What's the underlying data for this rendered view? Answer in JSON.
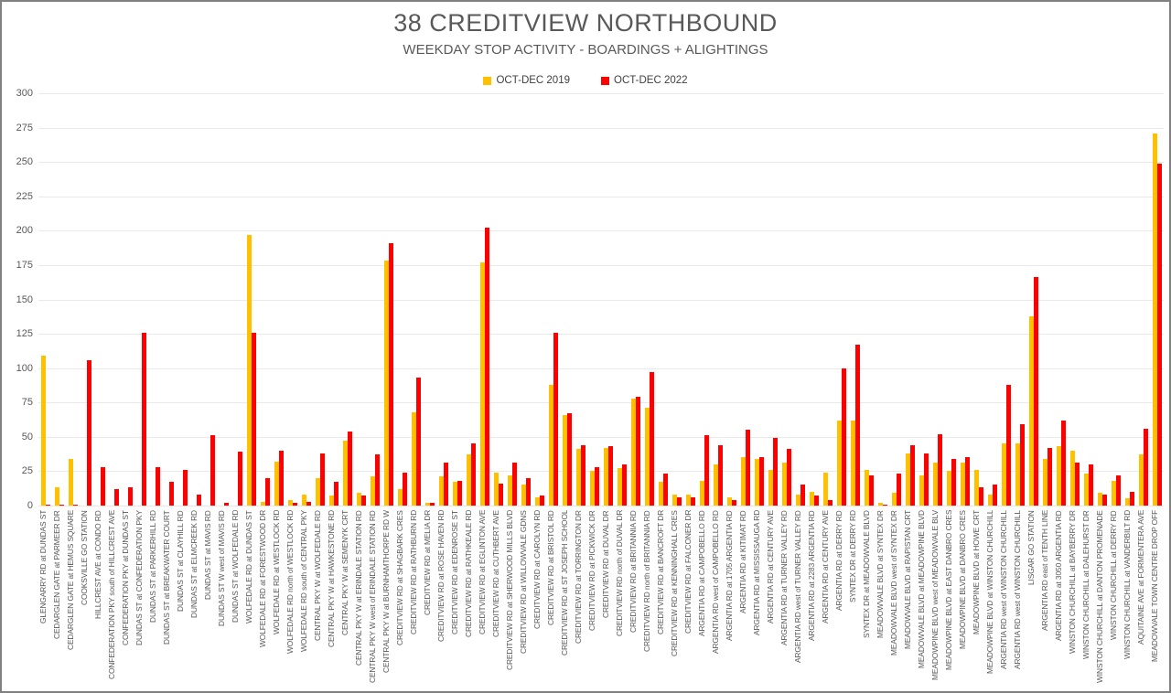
{
  "header": {
    "title": "38 CREDITVIEW NORTHBOUND",
    "subtitle": "WEEKDAY STOP ACTIVITY - BOARDINGS + ALIGHTINGS"
  },
  "legend": [
    {
      "label": "OCT-DEC 2019",
      "color": "#FFC000"
    },
    {
      "label": "OCT-DEC 2022",
      "color": "#FF0000"
    }
  ],
  "chart_data": {
    "type": "bar",
    "title": "38 CREDITVIEW NORTHBOUND",
    "subtitle": "WEEKDAY STOP ACTIVITY - BOARDINGS + ALIGHTINGS",
    "ylim": [
      0,
      300
    ],
    "ytick_step": 25,
    "grid": true,
    "legend_position": "top",
    "categories": [
      "GLENGARRY RD at DUNDAS ST",
      "CEDARGLEN GATE at PARMEER DR",
      "CEDARGLEN GATE at HEMUS SQUARE",
      "COOKSVILLE GO STATION",
      "HILLCREST AVE at CONDO RD",
      "CONFEDERATION PKY south of HILLCREST AVE",
      "CONFEDERATION PKY at DUNDAS ST",
      "DUNDAS ST at CONFEDERATION PKY",
      "DUNDAS ST at PARKERHILL RD",
      "DUNDAS ST at BREAKWATER COURT",
      "DUNDAS ST at CLAYHILL RD",
      "DUNDAS ST at ELMCREEK RD",
      "DUNDAS ST at MAVIS RD",
      "DUNDAS ST W west of MAVIS RD",
      "DUNDAS ST at WOLFEDALE RD",
      "WOLFEDALE RD at DUNDAS ST",
      "WOLFEDALE RD at FORESTWOOD DR",
      "WOLFEDALE RD at WESTLOCK RD",
      "WOLFEDALE RD north of WESTLOCK RD",
      "WOLFEDALE RD south of CENTRAL PKY",
      "CENTRAL PKY W at WOLFEDALE RD",
      "CENTRAL PKY W at HAWKESTONE RD",
      "CENTRAL PKY W at SEMENYK CRT",
      "CENTRAL PKY W at ERINDALE STATION RD",
      "CENTRAL PKY W west of ERINDALE STATION RD",
      "CENTRAL PKY W at BURNHAMTHORPE RD W",
      "CREDITVIEW RD at SHAGBARK CRES",
      "CREDITVIEW RD at RATHBURN RD",
      "CREDITVIEW RD at MELIA DR",
      "CREDITVIEW RD at ROSE HAVEN RD",
      "CREDITVIEW RD at EDENROSE ST",
      "CREDITVIEW RD at RATHKEALE RD",
      "CREDITVIEW RD at EGLINTON AVE",
      "CREDITVIEW RD at CUTHBERT AVE",
      "CREDITVIEW RD at SHERWOOD MILLS BLVD",
      "CREDITVIEW RD at WILLOWVALE GDNS",
      "CREDITVIEW RD at CAROLYN RD",
      "CREDITVIEW RD at BRISTOL RD",
      "CREDITVIEW RD at ST JOSEPH SCHOOL",
      "CREDITVIEW RD at TORRINGTON DR",
      "CREDITVIEW RD at PICKWICK DR",
      "CREDITVIEW RD at DUVAL DR",
      "CREDITVIEW RD north  of DUVAL DR",
      "CREDITVIEW RD at BRITANNIA RD",
      "CREDITVIEW RD north of BRITANNIA RD",
      "CREDITVIEW RD at BANCROFT DR",
      "CREDITVIEW RD at KENNINGHALL CRES",
      "CREDITVIEW RD at FALCONER DR",
      "ARGENTIA RD at CAMPOBELLO RD",
      "ARGENTIA RD west of CAMPOBELLO RD",
      "ARGENTIA RD at 1705 ARGENTIA RD",
      "ARGENTIA RD at KITIMAT RD",
      "ARGENTIA RD at MISSISSAUGA RD",
      "ARGENTIA RD at CENTURY AVE",
      "ARGENTIA RD at TURNER VALLEY RD",
      "ARGENTIA RD west of TURNER VALLEY RD",
      "ARGENTIA RD at 2283 ARGENTIA RD",
      "ARGENTIA RD at CENTURY AVE",
      "ARGENTIA RD at DERRY RD",
      "SYNTEX DR at DERRY RD",
      "SYNTEX DR at MEADOWVALE BLVD",
      "MEADOWVALE BLVD at SYNTEX DR",
      "MEADOWVALE BLVD west of SYNTEX DR",
      "MEADOWVALE BLVD at RAPISTAN CRT",
      "MEADOWVALE BLVD at MEADOWPINE BLVD",
      "MEADOWPINE BLVD west of MEADOWVALE BLV",
      "MEADOWPINE BLVD at EAST DANBRO CRES",
      "MEADOWPINE BLVD at DANBRO CRES",
      "MEADOWPINE BLVD at HOWE CRT",
      "MEADOWPINE BLVD at WINSTON CHURCHILL",
      "ARGENTIA RD west of WINSTON CHURCHILL",
      "ARGENTIA RD west of WINSTON CHURCHILL",
      "LISGAR GO STATION",
      "ARGENTIA RD east of TENTH LINE",
      "ARGENTIA RD at 3050 ARGENTIA RD",
      "WINSTON CHURCHILL at BAYBERRY DR",
      "WINSTON CHURCHILL at DALEHURST DR",
      "WINSTON CHURCHILL at DANTON PROMENADE",
      "WINSTON CHURCHILL at DERRY RD",
      "WINSTON CHURCHILL at VANDERBILT RD",
      "AQUITAINE AVE at FORMENTERA AVE",
      "MEADOWVALE TOWN CENTRE DROP OFF"
    ],
    "series": [
      {
        "name": "OCT-DEC 2019",
        "color": "#FFC000",
        "values": [
          109,
          13,
          34,
          0,
          0,
          0,
          0,
          0,
          0,
          0,
          0,
          0,
          0,
          0,
          0,
          197,
          3,
          32,
          4,
          8,
          20,
          7,
          47,
          9,
          21,
          178,
          12,
          68,
          2,
          21,
          17,
          37,
          177,
          24,
          22,
          15,
          6,
          88,
          66,
          41,
          25,
          42,
          27,
          78,
          71,
          17,
          8,
          8,
          18,
          30,
          6,
          35,
          34,
          26,
          31,
          8,
          10,
          24,
          62,
          62,
          26,
          2,
          9,
          38,
          22,
          31,
          25,
          31,
          26,
          8,
          45,
          45,
          138,
          34,
          43,
          40,
          23,
          9,
          18,
          5,
          37,
          271
        ]
      },
      {
        "name": "OCT-DEC 2022",
        "color": "#FF0000",
        "values": [
          1,
          1,
          1,
          106,
          28,
          12,
          13,
          126,
          28,
          17,
          26,
          8,
          51,
          2,
          39,
          126,
          20,
          40,
          2,
          3,
          38,
          17,
          54,
          7,
          37,
          191,
          24,
          93,
          2,
          31,
          18,
          45,
          202,
          16,
          31,
          20,
          7,
          126,
          67,
          44,
          28,
          43,
          30,
          79,
          97,
          23,
          6,
          6,
          51,
          44,
          4,
          55,
          35,
          49,
          41,
          15,
          7,
          4,
          100,
          117,
          22,
          1,
          23,
          44,
          38,
          52,
          34,
          35,
          13,
          15,
          88,
          59,
          166,
          42,
          62,
          31,
          30,
          8,
          22,
          10,
          56,
          249
        ]
      }
    ]
  }
}
